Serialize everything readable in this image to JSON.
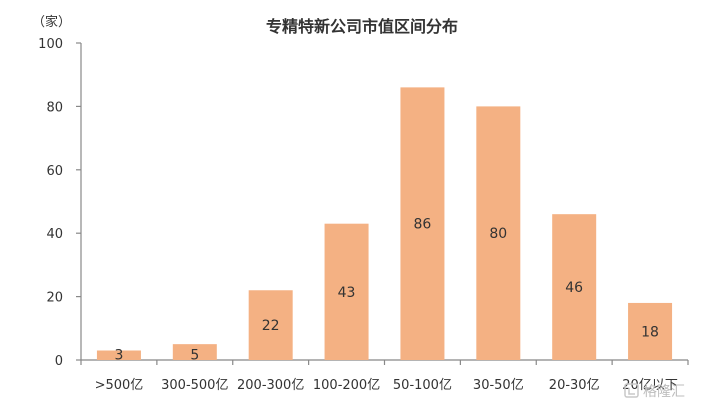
{
  "chart_data": {
    "type": "bar",
    "title": "专精特新公司市值区间分布",
    "unit_label": "（家）",
    "categories": [
      ">500亿",
      "300-500亿",
      "200-300亿",
      "100-200亿",
      "50-100亿",
      "30-50亿",
      "20-30亿",
      "20亿以下"
    ],
    "values": [
      3,
      5,
      22,
      43,
      86,
      80,
      46,
      18
    ],
    "ylim": [
      0,
      100
    ],
    "yticks": [
      0,
      20,
      40,
      60,
      80,
      100
    ],
    "grid": false,
    "legend": "none",
    "bar_color": "#F4B183"
  },
  "watermark": {
    "text": "格隆汇",
    "icon": "gelonghui-logo-icon"
  }
}
